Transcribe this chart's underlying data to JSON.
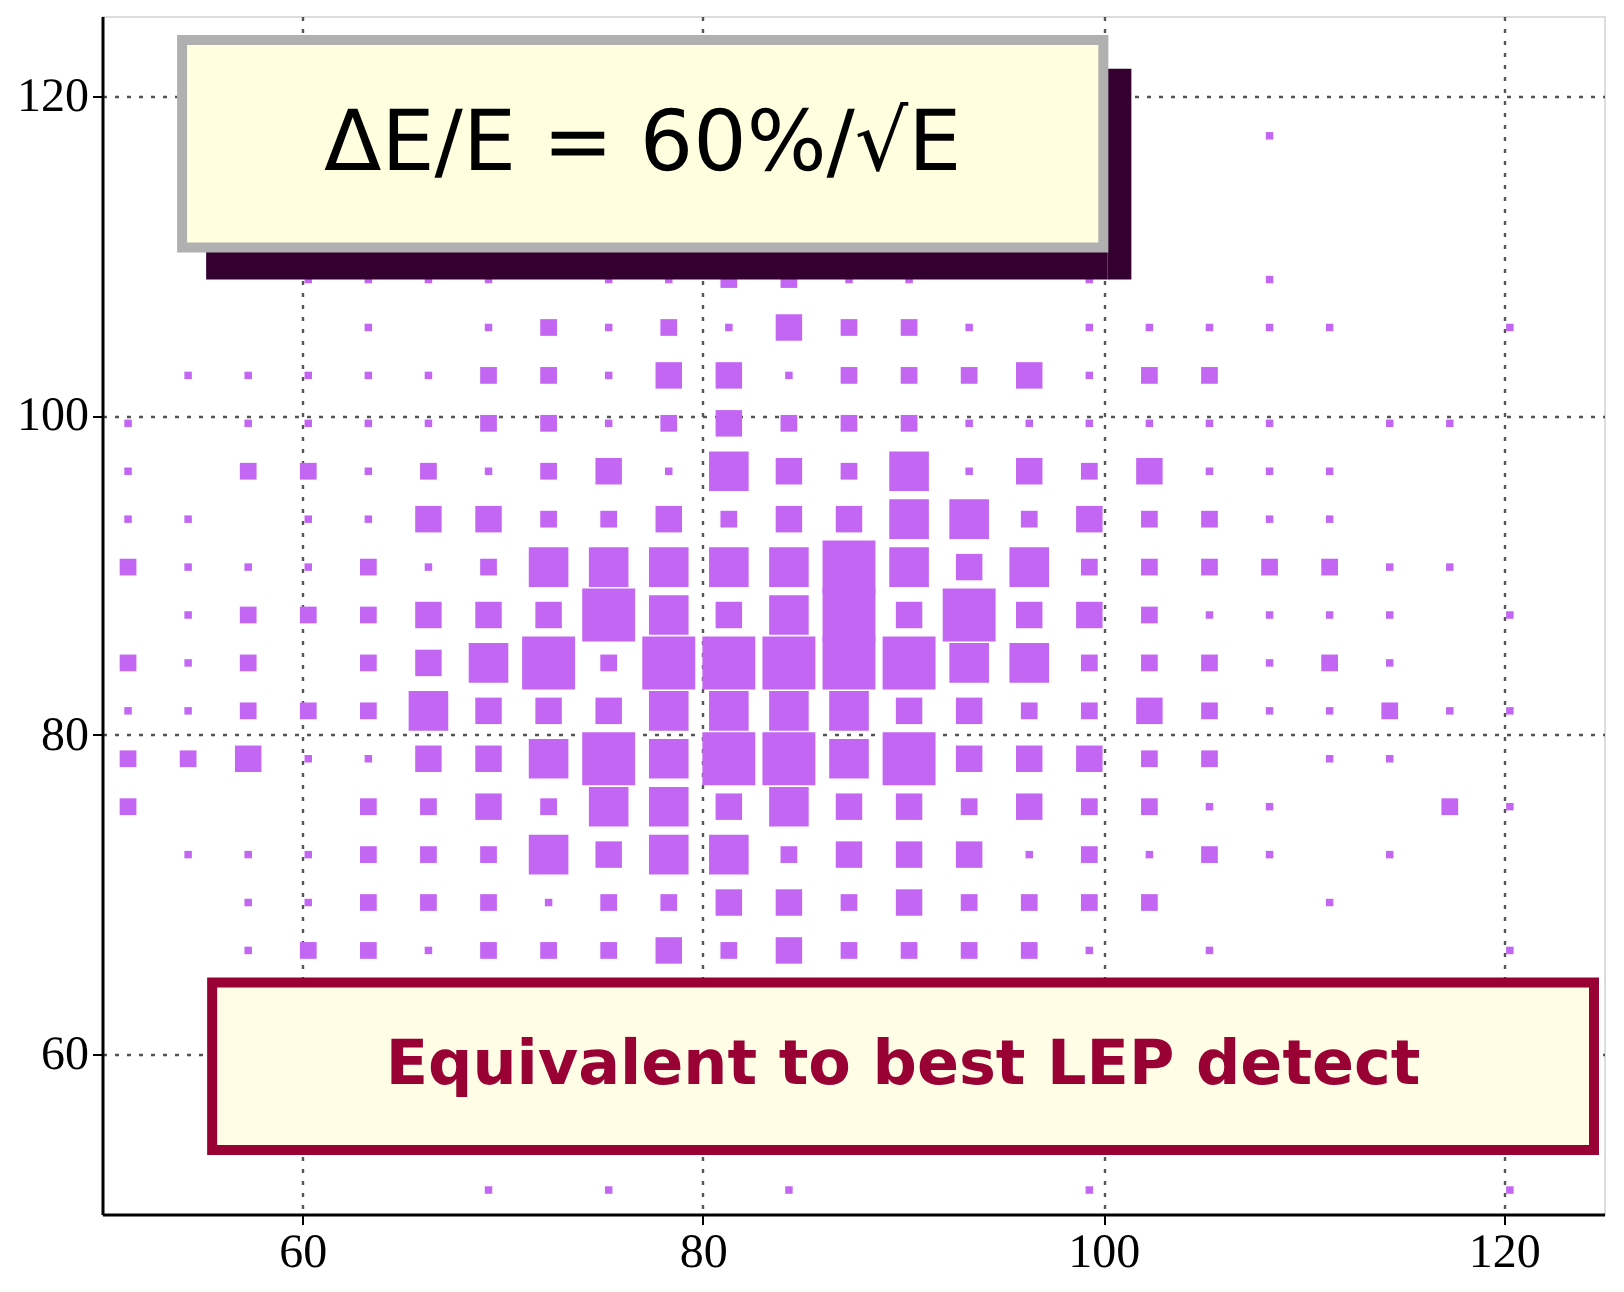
{
  "chart_data": {
    "type": "bubble",
    "marker": "square",
    "grid": true,
    "xlim": [
      50,
      125
    ],
    "ylim": [
      50,
      125
    ],
    "xticks": [
      60,
      80,
      100,
      120
    ],
    "yticks": [
      60,
      80,
      100,
      120
    ],
    "annotations": [
      "ΔE/E = 60%/√E",
      "Equivalent to best LEP detect"
    ],
    "series": [
      {
        "color": "#c466f4",
        "x": [
          108.3
        ],
        "values": [
          117.5
        ],
        "sizes": [
          0.02
        ]
      },
      {
        "color": "#c466f4",
        "x": [
          60.3,
          63.3,
          66.3,
          69.3,
          75.3,
          78.3,
          81.3,
          84.3,
          87.3,
          90.3,
          99.3,
          108.3
        ],
        "values": [
          108.5,
          108.5,
          108.5,
          108.5,
          108.5,
          108.5,
          108.5,
          108.5,
          108.5,
          108.5,
          108.5,
          108.5
        ],
        "sizes": [
          0.02,
          0.02,
          0.02,
          0.02,
          0.02,
          0.02,
          0.1,
          0.1,
          0.02,
          0.02,
          0.02,
          0.02
        ]
      },
      {
        "color": "#c466f4",
        "x": [
          63.3,
          69.3,
          72.3,
          75.3,
          78.3,
          81.3,
          84.3,
          87.3,
          90.3,
          93.3,
          99.3,
          102.3,
          105.3,
          108.3,
          111.3,
          120.3
        ],
        "values": [
          105.5,
          105.5,
          105.5,
          105.5,
          105.5,
          105.5,
          105.5,
          105.5,
          105.5,
          105.5,
          105.5,
          105.5,
          105.5,
          105.5,
          105.5,
          105.5
        ],
        "sizes": [
          0.02,
          0.02,
          0.1,
          0.02,
          0.1,
          0.02,
          0.25,
          0.1,
          0.1,
          0.02,
          0.02,
          0.02,
          0.02,
          0.02,
          0.02,
          0.02
        ]
      },
      {
        "color": "#c466f4",
        "x": [
          54.3,
          57.3,
          60.3,
          63.3,
          66.3,
          69.3,
          72.3,
          75.3,
          78.3,
          81.3,
          84.3,
          87.3,
          90.3,
          93.3,
          96.3,
          99.3,
          102.3,
          105.3
        ],
        "values": [
          102.5,
          102.5,
          102.5,
          102.5,
          102.5,
          102.5,
          102.5,
          102.5,
          102.5,
          102.5,
          102.5,
          102.5,
          102.5,
          102.5,
          102.5,
          102.5,
          102.5,
          102.5
        ],
        "sizes": [
          0.02,
          0.02,
          0.02,
          0.02,
          0.02,
          0.1,
          0.1,
          0.02,
          0.25,
          0.25,
          0.02,
          0.1,
          0.1,
          0.1,
          0.25,
          0.02,
          0.1,
          0.1
        ]
      },
      {
        "color": "#c466f4",
        "x": [
          51.3,
          57.3,
          60.3,
          63.3,
          66.3,
          69.3,
          72.3,
          75.3,
          78.3,
          81.3,
          84.3,
          87.3,
          90.3,
          93.3,
          96.3,
          99.3,
          102.3,
          105.3,
          108.3,
          114.3,
          117.3
        ],
        "values": [
          99.5,
          99.5,
          99.5,
          99.5,
          99.5,
          99.5,
          99.5,
          99.5,
          99.5,
          99.5,
          99.5,
          99.5,
          99.5,
          99.5,
          99.5,
          99.5,
          99.5,
          99.5,
          99.5,
          99.5,
          99.5
        ],
        "sizes": [
          0.02,
          0.02,
          0.02,
          0.02,
          0.02,
          0.1,
          0.1,
          0.02,
          0.1,
          0.25,
          0.1,
          0.1,
          0.1,
          0.02,
          0.02,
          0.02,
          0.02,
          0.02,
          0.02,
          0.02,
          0.02
        ]
      },
      {
        "color": "#c466f4",
        "x": [
          51.3,
          57.3,
          60.3,
          63.3,
          66.3,
          69.3,
          72.3,
          75.3,
          78.3,
          81.3,
          84.3,
          87.3,
          90.3,
          93.3,
          96.3,
          99.3,
          102.3,
          105.3,
          108.3,
          111.3
        ],
        "values": [
          96.5,
          96.5,
          96.5,
          96.5,
          96.5,
          96.5,
          96.5,
          96.5,
          96.5,
          96.5,
          96.5,
          96.5,
          96.5,
          96.5,
          96.5,
          96.5,
          96.5,
          96.5,
          96.5,
          96.5
        ],
        "sizes": [
          0.02,
          0.1,
          0.1,
          0.02,
          0.1,
          0.02,
          0.1,
          0.25,
          0.02,
          0.56,
          0.25,
          0.1,
          0.56,
          0.02,
          0.25,
          0.1,
          0.25,
          0.02,
          0.02,
          0.02
        ]
      },
      {
        "color": "#c466f4",
        "x": [
          51.3,
          54.3,
          60.3,
          63.3,
          66.3,
          69.3,
          72.3,
          75.3,
          78.3,
          81.3,
          84.3,
          87.3,
          90.3,
          93.3,
          96.3,
          99.3,
          102.3,
          105.3,
          108.3,
          111.3
        ],
        "values": [
          93.5,
          93.5,
          93.5,
          93.5,
          93.5,
          93.5,
          93.5,
          93.5,
          93.5,
          93.5,
          93.5,
          93.5,
          93.5,
          93.5,
          93.5,
          93.5,
          93.5,
          93.5,
          93.5,
          93.5
        ],
        "sizes": [
          0.02,
          0.02,
          0.02,
          0.02,
          0.25,
          0.25,
          0.1,
          0.1,
          0.25,
          0.1,
          0.25,
          0.25,
          0.56,
          0.56,
          0.1,
          0.25,
          0.1,
          0.1,
          0.02,
          0.02
        ]
      },
      {
        "color": "#c466f4",
        "x": [
          51.3,
          54.3,
          57.3,
          60.3,
          63.3,
          66.3,
          69.3,
          72.3,
          75.3,
          78.3,
          81.3,
          84.3,
          87.3,
          90.3,
          93.3,
          96.3,
          99.3,
          102.3,
          105.3,
          108.3,
          111.3,
          114.3,
          117.3
        ],
        "values": [
          90.5,
          90.5,
          90.5,
          90.5,
          90.5,
          90.5,
          90.5,
          90.5,
          90.5,
          90.5,
          90.5,
          90.5,
          90.5,
          90.5,
          90.5,
          90.5,
          90.5,
          90.5,
          90.5,
          90.5,
          90.5,
          90.5,
          90.5
        ],
        "sizes": [
          0.1,
          0.02,
          0.02,
          0.02,
          0.1,
          0.02,
          0.1,
          0.56,
          0.56,
          0.56,
          0.56,
          0.56,
          1,
          0.56,
          0.25,
          0.56,
          0.1,
          0.1,
          0.1,
          0.1,
          0.1,
          0.02,
          0.02
        ]
      },
      {
        "color": "#c466f4",
        "x": [
          54.3,
          57.3,
          60.3,
          63.3,
          66.3,
          69.3,
          72.3,
          75.3,
          78.3,
          81.3,
          84.3,
          87.3,
          90.3,
          93.3,
          96.3,
          99.3,
          102.3,
          105.3,
          108.3,
          111.3,
          114.3,
          120.3
        ],
        "values": [
          87.5,
          87.5,
          87.5,
          87.5,
          87.5,
          87.5,
          87.5,
          87.5,
          87.5,
          87.5,
          87.5,
          87.5,
          87.5,
          87.5,
          87.5,
          87.5,
          87.5,
          87.5,
          87.5,
          87.5,
          87.5,
          87.5
        ],
        "sizes": [
          0.02,
          0.1,
          0.1,
          0.1,
          0.25,
          0.25,
          0.25,
          1,
          0.56,
          0.25,
          0.56,
          1,
          0.25,
          1,
          0.25,
          0.25,
          0.1,
          0.02,
          0.02,
          0.02,
          0.02,
          0.02
        ]
      },
      {
        "color": "#c466f4",
        "x": [
          51.3,
          54.3,
          57.3,
          63.3,
          66.3,
          69.3,
          72.3,
          75.3,
          78.3,
          81.3,
          84.3,
          87.3,
          90.3,
          93.3,
          96.3,
          99.3,
          102.3,
          105.3,
          108.3,
          111.3,
          114.3
        ],
        "values": [
          84.5,
          84.5,
          84.5,
          84.5,
          84.5,
          84.5,
          84.5,
          84.5,
          84.5,
          84.5,
          84.5,
          84.5,
          84.5,
          84.5,
          84.5,
          84.5,
          84.5,
          84.5,
          84.5,
          84.5,
          84.5
        ],
        "sizes": [
          0.1,
          0.02,
          0.1,
          0.1,
          0.25,
          0.56,
          1,
          0.1,
          1,
          1,
          1,
          1,
          1,
          0.56,
          0.56,
          0.1,
          0.1,
          0.1,
          0.02,
          0.1,
          0.02
        ]
      },
      {
        "color": "#c466f4",
        "x": [
          51.3,
          54.3,
          57.3,
          60.3,
          63.3,
          66.3,
          69.3,
          72.3,
          75.3,
          78.3,
          81.3,
          84.3,
          87.3,
          90.3,
          93.3,
          96.3,
          99.3,
          102.3,
          105.3,
          108.3,
          111.3,
          114.3,
          117.3,
          120.3
        ],
        "values": [
          81.5,
          81.5,
          81.5,
          81.5,
          81.5,
          81.5,
          81.5,
          81.5,
          81.5,
          81.5,
          81.5,
          81.5,
          81.5,
          81.5,
          81.5,
          81.5,
          81.5,
          81.5,
          81.5,
          81.5,
          81.5,
          81.5,
          81.5,
          81.5
        ],
        "sizes": [
          0.02,
          0.02,
          0.1,
          0.1,
          0.1,
          0.56,
          0.25,
          0.25,
          0.25,
          0.56,
          0.56,
          0.56,
          0.56,
          0.25,
          0.25,
          0.1,
          0.1,
          0.25,
          0.1,
          0.02,
          0.02,
          0.1,
          0.02,
          0.02
        ]
      },
      {
        "color": "#c466f4",
        "x": [
          51.3,
          54.3,
          57.3,
          60.3,
          63.3,
          66.3,
          69.3,
          72.3,
          75.3,
          78.3,
          81.3,
          84.3,
          87.3,
          90.3,
          93.3,
          96.3,
          99.3,
          102.3,
          105.3,
          111.3,
          114.3
        ],
        "values": [
          78.5,
          78.5,
          78.5,
          78.5,
          78.5,
          78.5,
          78.5,
          78.5,
          78.5,
          78.5,
          78.5,
          78.5,
          78.5,
          78.5,
          78.5,
          78.5,
          78.5,
          78.5,
          78.5,
          78.5,
          78.5
        ],
        "sizes": [
          0.1,
          0.1,
          0.25,
          0.02,
          0.02,
          0.25,
          0.25,
          0.56,
          1,
          0.56,
          1,
          1,
          0.56,
          1,
          0.25,
          0.25,
          0.25,
          0.1,
          0.1,
          0.02,
          0.02
        ]
      },
      {
        "color": "#c466f4",
        "x": [
          51.3,
          63.3,
          66.3,
          69.3,
          72.3,
          75.3,
          78.3,
          81.3,
          84.3,
          87.3,
          90.3,
          93.3,
          96.3,
          99.3,
          102.3,
          105.3,
          108.3,
          117.3,
          120.3
        ],
        "values": [
          75.5,
          75.5,
          75.5,
          75.5,
          75.5,
          75.5,
          75.5,
          75.5,
          75.5,
          75.5,
          75.5,
          75.5,
          75.5,
          75.5,
          75.5,
          75.5,
          75.5,
          75.5,
          75.5
        ],
        "sizes": [
          0.1,
          0.1,
          0.1,
          0.25,
          0.1,
          0.56,
          0.56,
          0.25,
          0.56,
          0.25,
          0.25,
          0.1,
          0.25,
          0.1,
          0.1,
          0.02,
          0.02,
          0.1,
          0.02
        ]
      },
      {
        "color": "#c466f4",
        "x": [
          54.3,
          57.3,
          60.3,
          63.3,
          66.3,
          69.3,
          72.3,
          75.3,
          78.3,
          81.3,
          84.3,
          87.3,
          90.3,
          93.3,
          96.3,
          99.3,
          102.3,
          105.3,
          108.3,
          114.3
        ],
        "values": [
          72.5,
          72.5,
          72.5,
          72.5,
          72.5,
          72.5,
          72.5,
          72.5,
          72.5,
          72.5,
          72.5,
          72.5,
          72.5,
          72.5,
          72.5,
          72.5,
          72.5,
          72.5,
          72.5,
          72.5
        ],
        "sizes": [
          0.02,
          0.02,
          0.02,
          0.1,
          0.1,
          0.1,
          0.56,
          0.25,
          0.56,
          0.56,
          0.1,
          0.25,
          0.25,
          0.25,
          0.02,
          0.1,
          0.02,
          0.1,
          0.02,
          0.02
        ]
      },
      {
        "color": "#c466f4",
        "x": [
          57.3,
          60.3,
          63.3,
          66.3,
          69.3,
          72.3,
          75.3,
          78.3,
          81.3,
          84.3,
          87.3,
          90.3,
          93.3,
          96.3,
          99.3,
          102.3,
          111.3
        ],
        "values": [
          69.5,
          69.5,
          69.5,
          69.5,
          69.5,
          69.5,
          69.5,
          69.5,
          69.5,
          69.5,
          69.5,
          69.5,
          69.5,
          69.5,
          69.5,
          69.5,
          69.5
        ],
        "sizes": [
          0.02,
          0.02,
          0.1,
          0.1,
          0.1,
          0.02,
          0.1,
          0.1,
          0.25,
          0.25,
          0.1,
          0.25,
          0.1,
          0.1,
          0.1,
          0.1,
          0.02
        ]
      },
      {
        "color": "#c466f4",
        "x": [
          57.3,
          60.3,
          63.3,
          66.3,
          69.3,
          72.3,
          75.3,
          78.3,
          81.3,
          84.3,
          87.3,
          90.3,
          93.3,
          96.3,
          99.3,
          105.3,
          120.3
        ],
        "values": [
          66.5,
          66.5,
          66.5,
          66.5,
          66.5,
          66.5,
          66.5,
          66.5,
          66.5,
          66.5,
          66.5,
          66.5,
          66.5,
          66.5,
          66.5,
          66.5,
          66.5
        ],
        "sizes": [
          0.02,
          0.1,
          0.1,
          0.02,
          0.1,
          0.1,
          0.1,
          0.25,
          0.1,
          0.25,
          0.1,
          0.1,
          0.1,
          0.1,
          0.02,
          0.02,
          0.02
        ]
      },
      {
        "color": "#c466f4",
        "x": [
          69.3,
          75.3,
          84.3,
          99.3,
          120.3
        ],
        "values": [
          51.5,
          51.5,
          51.5,
          51.5,
          51.5
        ],
        "sizes": [
          0.02,
          0.02,
          0.02,
          0.02,
          0.02
        ]
      }
    ]
  }
}
